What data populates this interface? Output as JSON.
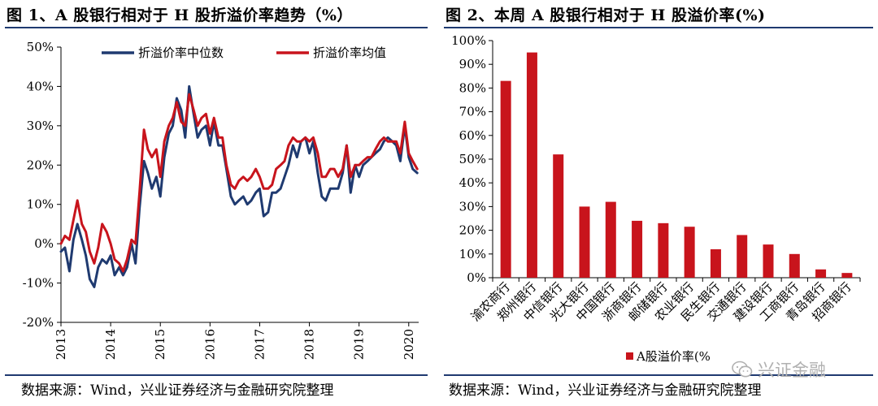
{
  "fig1": {
    "title": "图 1、A 股银行相对于 H 股折溢价率趋势（%）",
    "source": "数据来源：Wind，兴业证券经济与金融研究院整理",
    "chart_data": {
      "type": "line",
      "ylim": [
        -20,
        50
      ],
      "yticks": [
        "50%",
        "40%",
        "30%",
        "20%",
        "10%",
        "0%",
        "-10%",
        "-20%"
      ],
      "ytick_values": [
        50,
        40,
        30,
        20,
        10,
        0,
        -10,
        -20
      ],
      "xlim": [
        2013.0,
        2020.2
      ],
      "xticks": [
        "2013",
        "2014",
        "2015",
        "2016",
        "2017",
        "2018",
        "2019",
        "2020"
      ],
      "xtick_values": [
        2013,
        2014,
        2015,
        2016,
        2017,
        2018,
        2019,
        2020
      ],
      "grid": false,
      "legend": "top",
      "series": [
        {
          "name": "折溢价率中位数",
          "color": "#1f3a70",
          "x": [
            2013.0,
            2013.08,
            2013.17,
            2013.25,
            2013.33,
            2013.42,
            2013.5,
            2013.58,
            2013.67,
            2013.75,
            2013.83,
            2013.92,
            2014.0,
            2014.08,
            2014.17,
            2014.25,
            2014.33,
            2014.42,
            2014.5,
            2014.58,
            2014.67,
            2014.75,
            2014.83,
            2014.92,
            2015.0,
            2015.08,
            2015.17,
            2015.25,
            2015.33,
            2015.42,
            2015.5,
            2015.58,
            2015.67,
            2015.75,
            2015.83,
            2015.92,
            2016.0,
            2016.08,
            2016.17,
            2016.25,
            2016.33,
            2016.42,
            2016.5,
            2016.58,
            2016.67,
            2016.75,
            2016.83,
            2016.92,
            2017.0,
            2017.08,
            2017.17,
            2017.25,
            2017.33,
            2017.42,
            2017.5,
            2017.58,
            2017.67,
            2017.75,
            2017.83,
            2017.92,
            2018.0,
            2018.08,
            2018.17,
            2018.25,
            2018.33,
            2018.42,
            2018.5,
            2018.58,
            2018.67,
            2018.75,
            2018.83,
            2018.92,
            2019.0,
            2019.08,
            2019.17,
            2019.25,
            2019.33,
            2019.42,
            2019.5,
            2019.58,
            2019.67,
            2019.75,
            2019.83,
            2019.92,
            2020.0,
            2020.08,
            2020.17
          ],
          "values": [
            -2,
            -1,
            -7,
            1,
            5,
            1,
            -3,
            -9,
            -11,
            -6,
            -4,
            -5,
            -3,
            -8,
            -6,
            -8,
            -6,
            0,
            -5,
            9,
            21,
            18,
            14,
            17,
            12,
            22,
            28,
            30,
            37,
            34,
            27,
            40,
            33,
            27,
            29,
            30,
            25,
            31,
            25,
            25,
            19,
            12,
            10,
            11,
            12,
            10,
            11,
            13,
            14,
            7,
            8,
            13,
            13,
            14,
            17,
            20,
            25,
            22,
            26,
            27,
            23,
            26,
            18,
            12,
            11,
            14,
            14,
            14,
            18,
            25,
            13,
            20,
            17,
            20,
            21,
            22,
            23,
            24,
            26,
            27,
            26,
            25,
            21,
            30,
            22,
            19,
            18
          ]
        },
        {
          "name": "折溢价率均值",
          "color": "#c8141c",
          "x": [
            2013.0,
            2013.08,
            2013.17,
            2013.25,
            2013.33,
            2013.42,
            2013.5,
            2013.58,
            2013.67,
            2013.75,
            2013.83,
            2013.92,
            2014.0,
            2014.08,
            2014.17,
            2014.25,
            2014.33,
            2014.42,
            2014.5,
            2014.58,
            2014.67,
            2014.75,
            2014.83,
            2014.92,
            2015.0,
            2015.08,
            2015.17,
            2015.25,
            2015.33,
            2015.42,
            2015.5,
            2015.58,
            2015.67,
            2015.75,
            2015.83,
            2015.92,
            2016.0,
            2016.08,
            2016.17,
            2016.25,
            2016.33,
            2016.42,
            2016.5,
            2016.58,
            2016.67,
            2016.75,
            2016.83,
            2016.92,
            2017.0,
            2017.08,
            2017.17,
            2017.25,
            2017.33,
            2017.42,
            2017.5,
            2017.58,
            2017.67,
            2017.75,
            2017.83,
            2017.92,
            2018.0,
            2018.08,
            2018.17,
            2018.25,
            2018.33,
            2018.42,
            2018.5,
            2018.58,
            2018.67,
            2018.75,
            2018.83,
            2018.92,
            2019.0,
            2019.08,
            2019.17,
            2019.25,
            2019.33,
            2019.42,
            2019.5,
            2019.58,
            2019.67,
            2019.75,
            2019.83,
            2019.92,
            2020.0,
            2020.08,
            2020.17
          ],
          "values": [
            0,
            2,
            1,
            6,
            11,
            5,
            3,
            -2,
            -5,
            -1,
            5,
            3,
            0,
            -4,
            -5,
            -7,
            -4,
            1,
            0,
            13,
            29,
            24,
            22,
            24,
            17,
            26,
            30,
            32,
            36,
            31,
            30,
            38,
            34,
            30,
            32,
            33,
            28,
            32,
            27,
            27,
            20,
            15,
            14,
            16,
            17,
            16,
            17,
            19,
            17,
            14,
            14,
            15,
            19,
            20,
            21,
            25,
            27,
            26,
            26,
            27,
            26,
            27,
            23,
            17,
            17,
            19,
            19,
            17,
            19,
            25,
            17,
            20,
            20,
            21,
            22,
            22,
            24,
            26,
            27,
            26,
            26,
            26,
            23,
            31,
            23,
            21,
            19
          ]
        }
      ]
    }
  },
  "fig2": {
    "title": "图 2、本周 A 股银行相对于 H 股溢价率(%)",
    "source": "数据来源：Wind，兴业证券经济与金融研究院整理",
    "chart_data": {
      "type": "bar",
      "ylim": [
        0,
        100
      ],
      "yticks": [
        "100%",
        "90%",
        "80%",
        "70%",
        "60%",
        "50%",
        "40%",
        "30%",
        "20%",
        "10%",
        "0%"
      ],
      "ytick_values": [
        100,
        90,
        80,
        70,
        60,
        50,
        40,
        30,
        20,
        10,
        0
      ],
      "categories": [
        "渝农商行",
        "郑州银行",
        "中信银行",
        "光大银行",
        "中国银行",
        "浙商银行",
        "邮储银行",
        "农业银行",
        "民生银行",
        "交通银行",
        "建设银行",
        "工商银行",
        "青岛银行",
        "招商银行"
      ],
      "series": [
        {
          "name": "A股溢价率(%",
          "color": "#c8141c",
          "values": [
            83,
            95,
            52,
            30,
            32,
            24,
            23,
            21.5,
            12,
            18,
            14,
            10,
            3.5,
            2
          ]
        }
      ],
      "grid": false,
      "legend": "bottom"
    }
  },
  "watermark": {
    "text": "兴证金融",
    "icon": "wechat-icon"
  }
}
